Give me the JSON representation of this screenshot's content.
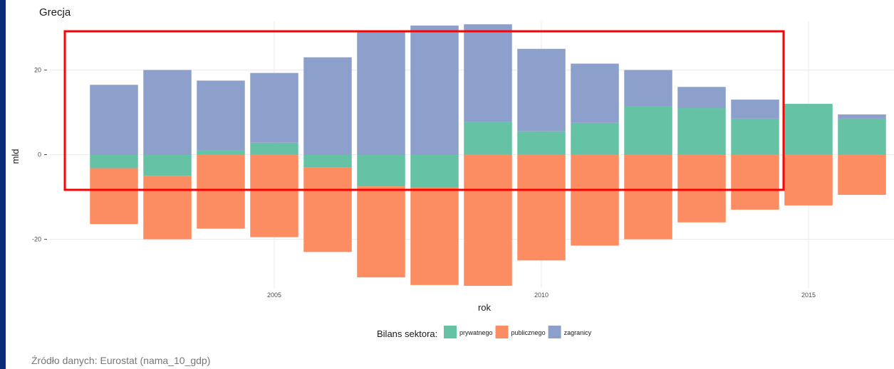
{
  "chart_data": {
    "type": "bar",
    "stacked": true,
    "title": "Grecja",
    "xlabel": "rok",
    "ylabel": "mld",
    "x": [
      2002,
      2003,
      2004,
      2005,
      2006,
      2007,
      2008,
      2009,
      2010,
      2011,
      2012,
      2013,
      2014,
      2015,
      2016
    ],
    "x_ticks": [
      2005,
      2010,
      2015
    ],
    "y_ticks": [
      -20,
      0,
      20
    ],
    "xlim": [
      2000.8,
      2016.6
    ],
    "ylim": [
      -31.5,
      31.5
    ],
    "grid": true,
    "legend_title": "Bilans sektora:",
    "legend_position": "bottom",
    "series": [
      {
        "name": "prywatnego",
        "color": "#66c2a5",
        "values": [
          -3.2,
          -5.0,
          1.0,
          2.8,
          -3.0,
          -7.5,
          -7.8,
          7.8,
          5.5,
          7.5,
          11.5,
          11.0,
          8.5,
          12.0,
          8.5
        ]
      },
      {
        "name": "publicznego",
        "color": "#fc8d62",
        "values": [
          -13.2,
          -15.0,
          -17.5,
          -19.5,
          -20.0,
          -21.5,
          -23.0,
          -31.0,
          -25.0,
          -21.5,
          -20.0,
          -16.0,
          -13.0,
          -12.0,
          -9.5
        ]
      },
      {
        "name": "zagranicy",
        "color": "#8da0cb",
        "values": [
          16.5,
          20.0,
          16.5,
          16.5,
          23.0,
          29.0,
          30.5,
          23.0,
          19.5,
          14.0,
          8.5,
          5.0,
          4.5,
          0.0,
          1.0
        ]
      }
    ],
    "source": "Źródło danych: Eurostat (nama_10_gdp)",
    "annotation": {
      "shape": "rectangle",
      "color": "#ff0000"
    }
  }
}
